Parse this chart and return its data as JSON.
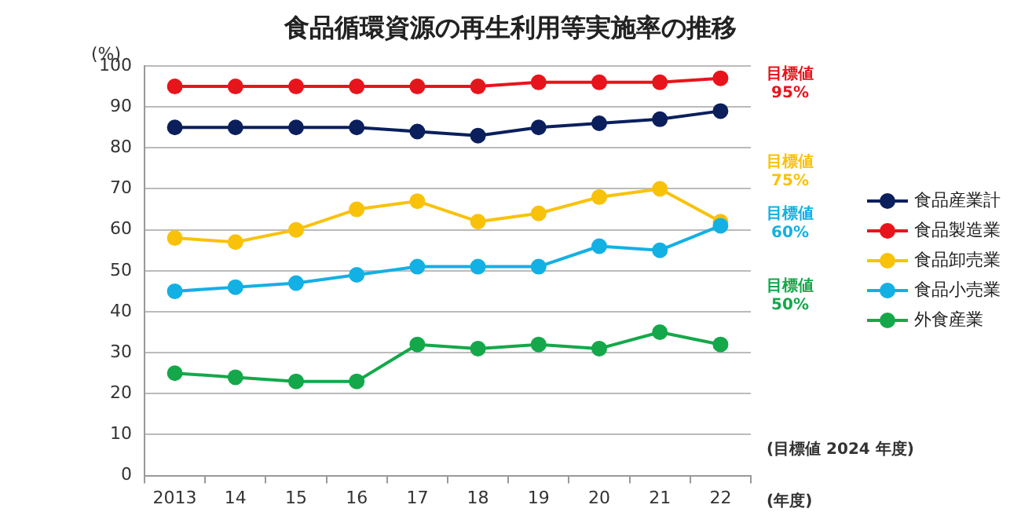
{
  "chart_data": {
    "type": "line",
    "title": "食品循環資源の再生利用等実施率の推移",
    "ylabel": "(%)",
    "xlabel": "(年度)",
    "categories": [
      "2013",
      "14",
      "15",
      "16",
      "17",
      "18",
      "19",
      "20",
      "21",
      "22"
    ],
    "series": [
      {
        "name": "食品産業計",
        "color": "#0b1f5c",
        "values": [
          85,
          85,
          85,
          85,
          84,
          83,
          85,
          86,
          87,
          89
        ]
      },
      {
        "name": "食品製造業",
        "color": "#e8141c",
        "values": [
          95,
          95,
          95,
          95,
          95,
          95,
          96,
          96,
          96,
          97
        ]
      },
      {
        "name": "食品卸売業",
        "color": "#f9c20a",
        "values": [
          58,
          57,
          60,
          65,
          67,
          62,
          64,
          68,
          70,
          62
        ]
      },
      {
        "name": "食品小売業",
        "color": "#13b0e4",
        "values": [
          45,
          46,
          47,
          49,
          51,
          51,
          51,
          56,
          55,
          61
        ]
      },
      {
        "name": "外食産業",
        "color": "#14a84a",
        "values": [
          25,
          24,
          23,
          23,
          32,
          31,
          32,
          31,
          35,
          32
        ]
      }
    ],
    "annotations": [
      "目標値\n95%",
      "目標値\n75%",
      "目標値\n60%",
      "目標値\n50%",
      "(目標値 2024 年度)"
    ],
    "ylim": [
      0,
      100
    ],
    "yticks": [
      0,
      10,
      20,
      30,
      40,
      50,
      60,
      70,
      80,
      90,
      100
    ],
    "grid": "y",
    "legend": "right",
    "marker": "circle",
    "line_style": "solid"
  }
}
